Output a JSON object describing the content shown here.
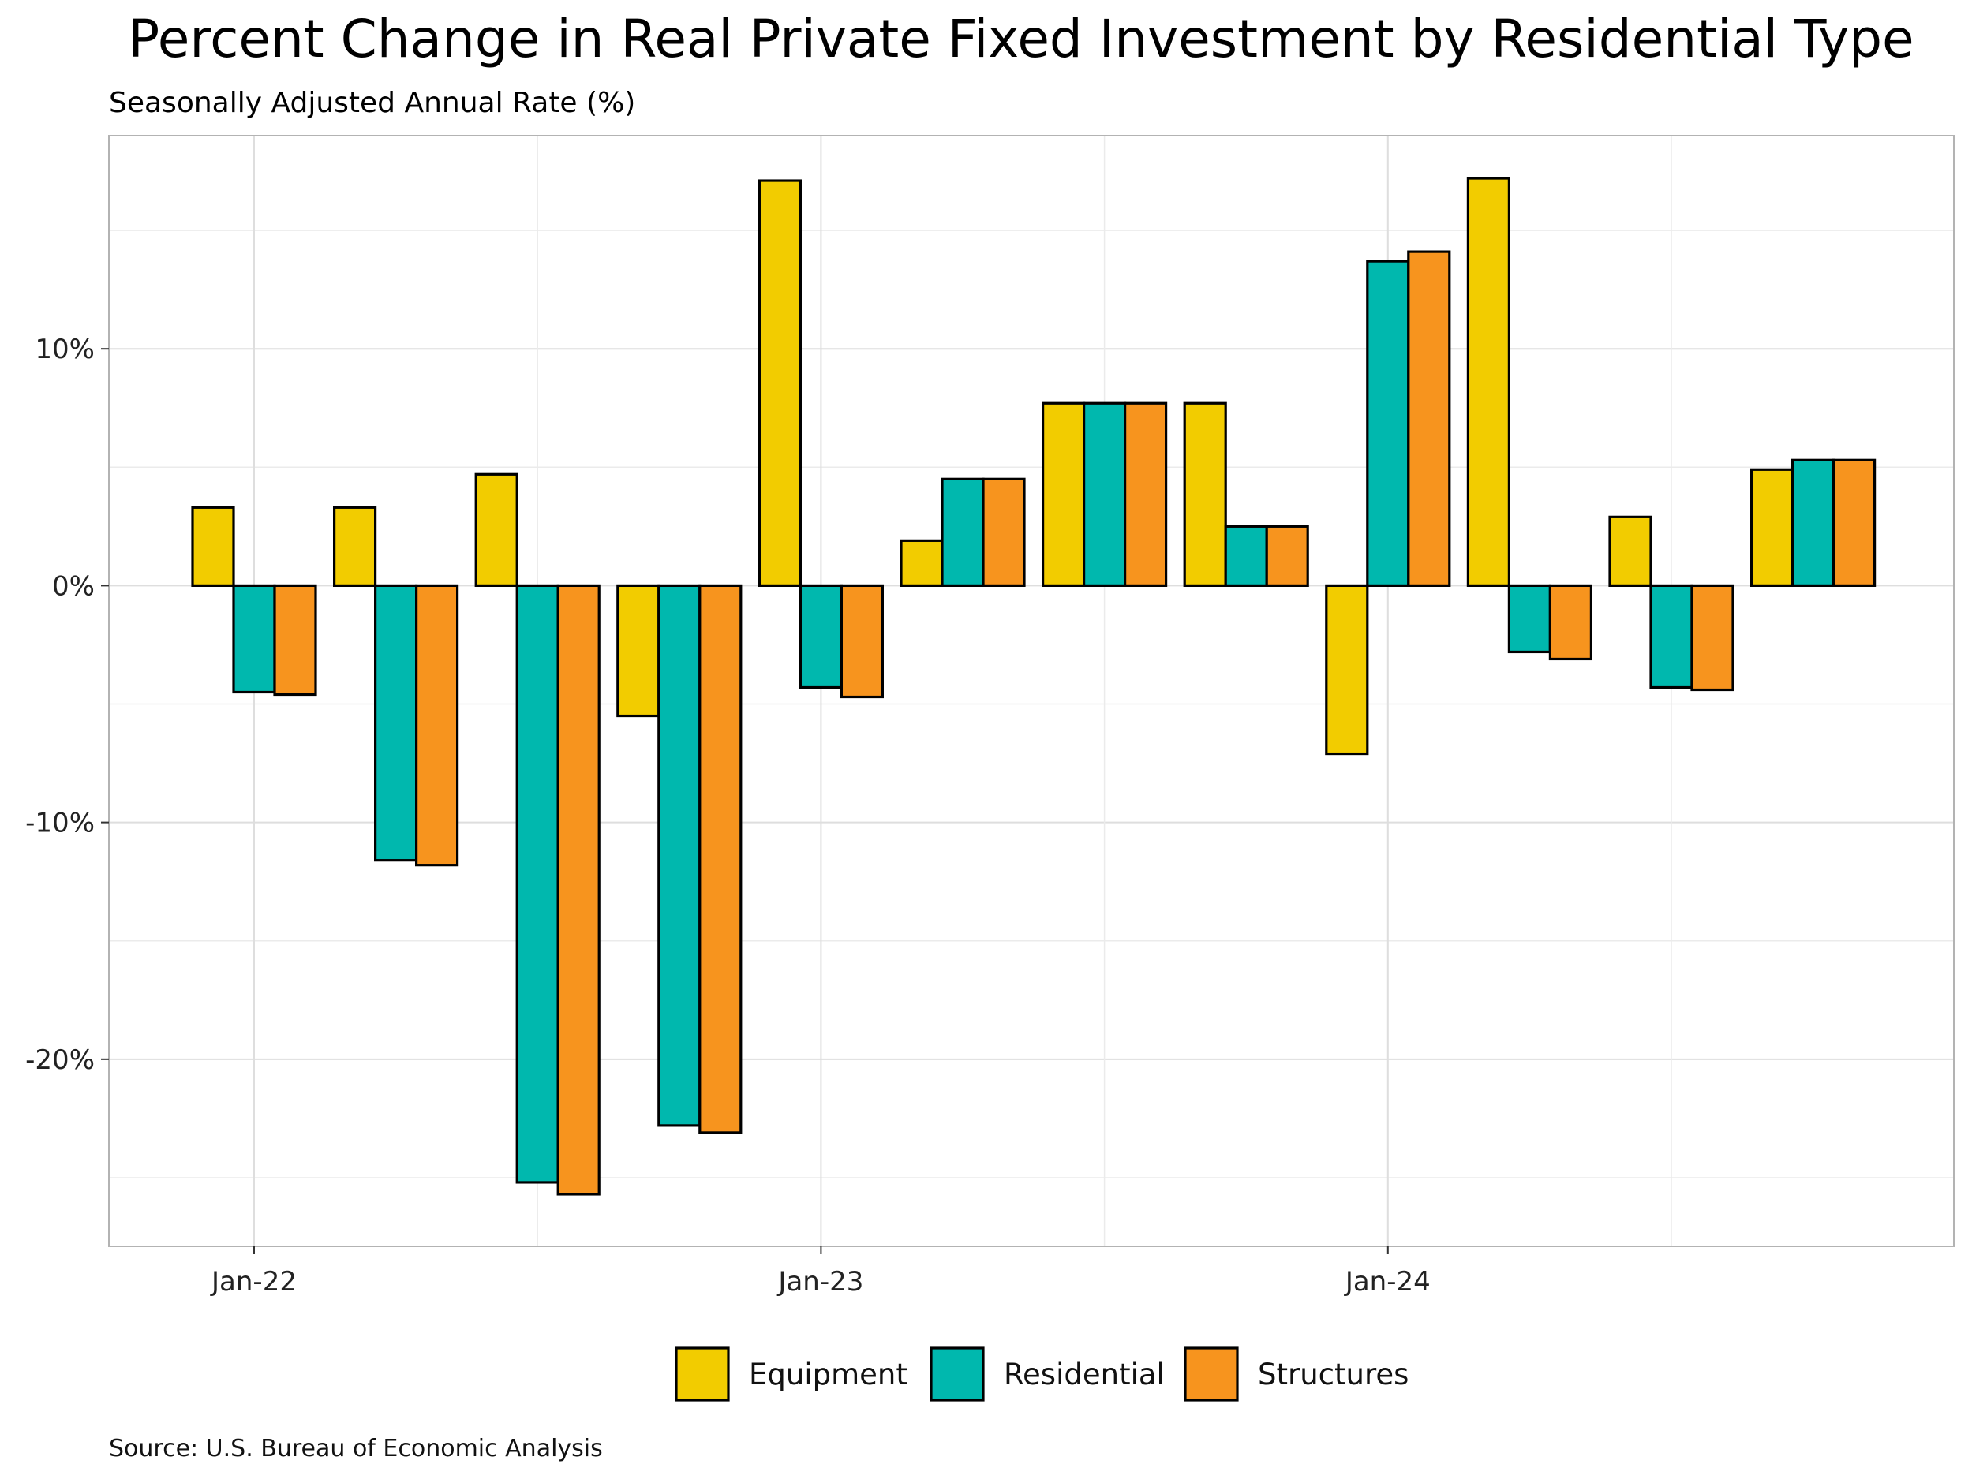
{
  "chart_data": {
    "type": "bar",
    "title": "Percent Change in Real Private Fixed Investment by Residential Type",
    "subtitle": "Seasonally Adjusted Annual Rate (%)",
    "source": "Source: U.S. Bureau of Economic Analysis",
    "x_tick_labels": [
      "Jan-22",
      "Jan-23",
      "Jan-24"
    ],
    "y_tick_labels": [
      "10%",
      "0%",
      "-10%",
      "-20%"
    ],
    "y_ticks": [
      10,
      0,
      -10,
      -20
    ],
    "ylim": [
      -27.9,
      19.0
    ],
    "grid": true,
    "legend_position": "bottom",
    "periods": [
      "2022-01",
      "2022-04",
      "2022-07",
      "2022-10",
      "2023-01",
      "2023-04",
      "2023-07",
      "2023-10",
      "2024-01",
      "2024-04",
      "2024-07",
      "2024-10"
    ],
    "series": [
      {
        "name": "Equipment",
        "color": "#F2CC00",
        "values": [
          3.3,
          3.3,
          4.7,
          -5.5,
          17.1,
          1.9,
          7.7,
          7.7,
          -7.1,
          17.2,
          2.9,
          4.9
        ]
      },
      {
        "name": "Residential",
        "color": "#00B8AE",
        "values": [
          -4.5,
          -11.6,
          -25.2,
          -22.8,
          -4.3,
          4.5,
          7.7,
          2.5,
          13.7,
          -2.8,
          -4.3,
          5.3
        ]
      },
      {
        "name": "Structures",
        "color": "#F7941E",
        "values": [
          -4.6,
          -11.8,
          -25.7,
          -23.1,
          -4.7,
          4.5,
          7.7,
          2.5,
          14.1,
          -3.1,
          -4.4,
          5.3
        ]
      }
    ]
  }
}
